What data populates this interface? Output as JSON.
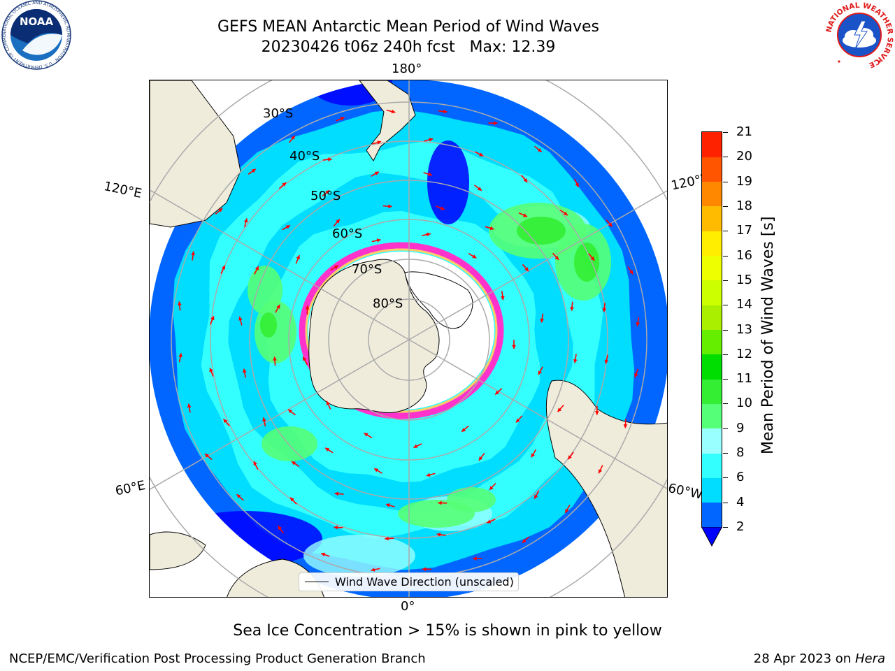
{
  "header": {
    "title_line1": "GEFS MEAN Antarctic Mean Period of Wind Waves",
    "title_line2": "20230426 t06z 240h fcst   Max: 12.39"
  },
  "logos": {
    "left": "noaa-logo",
    "right": "national-weather-service-logo",
    "left_text": "NOAA",
    "left_ring_text": "NATIONAL OCEANIC AND ATMOSPHERIC ADMINISTRATION · U.S. DEPARTMENT OF COMMERCE",
    "right_ring_text": "NATIONAL WEATHER SERVICE"
  },
  "map": {
    "projection": "South Polar Stereographic",
    "longitude_labels": {
      "top": "180°",
      "bottom": "0°",
      "upper_left": "120°E",
      "upper_right": "120°W",
      "lower_left": "60°E",
      "lower_right": "60°W"
    },
    "latitude_labels": [
      "30°S",
      "40°S",
      "50°S",
      "60°S",
      "70°S",
      "80°S"
    ],
    "land_color": "#efecdc",
    "ice_edge_colors": [
      "#ff33cc",
      "#ffcc66",
      "#ffff66"
    ],
    "legend_text": "Wind Wave Direction (unscaled)",
    "arrow_color": "#ff0000"
  },
  "colorbar": {
    "title": "Mean Period of Wind Waves [s]",
    "ticks": [
      "2",
      "4",
      "6",
      "8",
      "9",
      "10",
      "11",
      "12",
      "13",
      "14",
      "15",
      "16",
      "17",
      "18",
      "19",
      "20",
      "21"
    ],
    "colors": [
      "#0066ff",
      "#00ddff",
      "#33ffff",
      "#99ffff",
      "#55ff77",
      "#33ee33",
      "#00dd00",
      "#66ee00",
      "#aaee00",
      "#ccff00",
      "#eeff00",
      "#ffee00",
      "#ffbb00",
      "#ff8800",
      "#ff5500",
      "#ff2200"
    ],
    "under_color": "#0000ff"
  },
  "caption": "Sea Ice Concentration > 15% is shown in pink to yellow",
  "footer": {
    "left": "NCEP/EMC/Verification Post Processing Product Generation Branch",
    "right_prefix": "28 Apr 2023 on ",
    "right_host": "Hera"
  }
}
